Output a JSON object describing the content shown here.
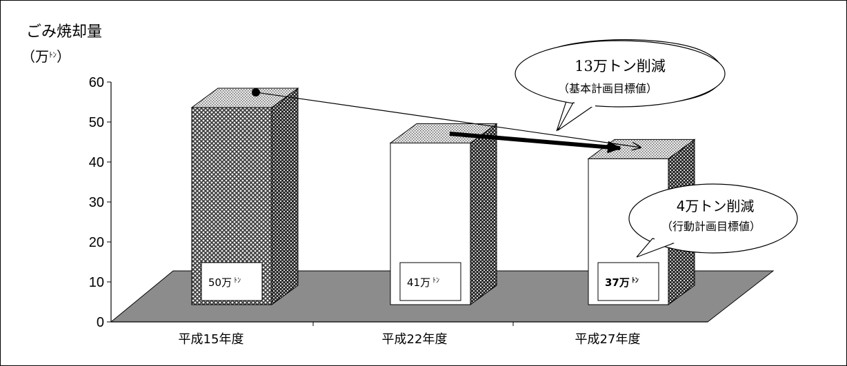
{
  "chart_data": {
    "type": "bar",
    "title": "ごみ焼却量",
    "ylabel_unit": "（万",
    "ylabel_unit_small": "ﾄﾝ",
    "ylabel_unit_close": "）",
    "ylim": [
      0,
      60
    ],
    "yticks": [
      "0",
      "10",
      "20",
      "30",
      "40",
      "50",
      "60"
    ],
    "categories": [
      "平成15年度",
      "平成22年度",
      "平成27年度"
    ],
    "values": [
      50,
      41,
      37
    ],
    "data_labels": [
      {
        "main": "50万",
        "small": "ﾄﾝ",
        "bold": false
      },
      {
        "main": "41万",
        "small": "ﾄﾝ",
        "bold": false
      },
      {
        "main": "37万",
        "small": "ﾄﾝ",
        "bold": true
      }
    ],
    "grid": false,
    "three_d": true
  },
  "callouts": [
    {
      "main": "13万トン削減",
      "sub": "（基本計画目標値）"
    },
    {
      "main": "4万トン削減",
      "sub": "（行動計画目標値）"
    }
  ],
  "colors": {
    "floor": "#8c8c8c",
    "bar_white": "#ffffff",
    "bar_pattern_dark": "#3a3a3a",
    "top_dots": "#b0b0b0"
  }
}
